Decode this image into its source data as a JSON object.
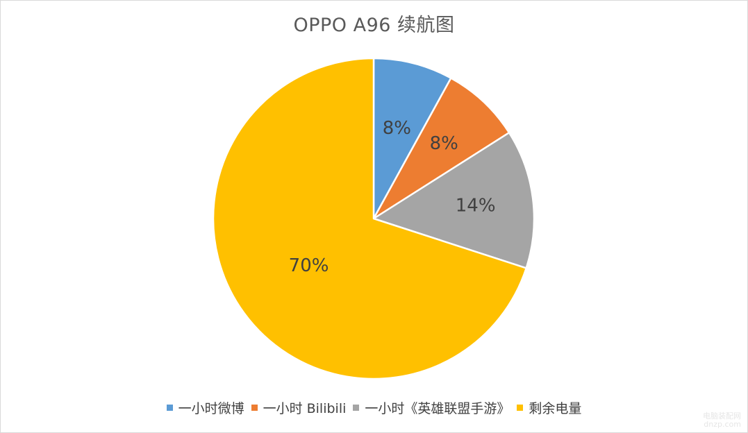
{
  "chart_data": {
    "type": "pie",
    "title": "OPPO A96 续航图",
    "categories": [
      "一小时微博",
      "一小时 Bilibili",
      "一小时《英雄联盟手游》",
      "剩余电量"
    ],
    "values": [
      8,
      8,
      14,
      70
    ],
    "data_labels": [
      "8%",
      "8%",
      "14%",
      "70%"
    ],
    "colors": [
      "#5b9bd5",
      "#ed7d31",
      "#a5a5a5",
      "#ffc000"
    ],
    "start_angle_deg": 0,
    "direction": "clockwise",
    "legend_position": "bottom"
  },
  "watermark": {
    "line1": "电脑装配网",
    "line2": "dnzp.com"
  }
}
